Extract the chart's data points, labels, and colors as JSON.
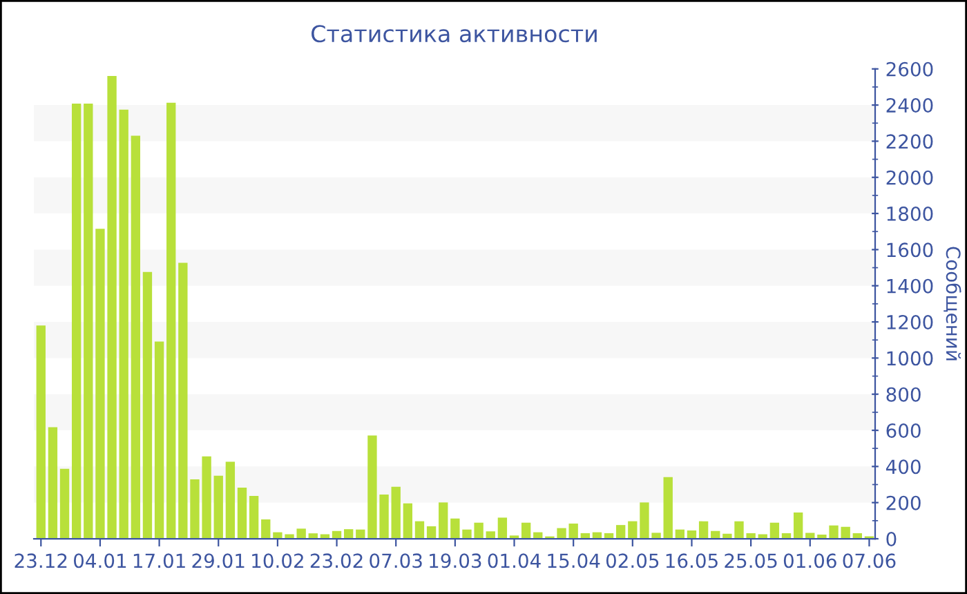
{
  "chart_data": {
    "type": "bar",
    "title": "Статистика активности",
    "ylabel": "Сообщений",
    "categories": [
      "23.12",
      null,
      null,
      null,
      null,
      "04.01",
      null,
      null,
      null,
      null,
      "17.01",
      null,
      null,
      null,
      null,
      "29.01",
      null,
      null,
      null,
      null,
      "10.02",
      null,
      null,
      null,
      null,
      "23.02",
      null,
      null,
      null,
      null,
      "07.03",
      null,
      null,
      null,
      null,
      "19.03",
      null,
      null,
      null,
      null,
      "01.04",
      null,
      null,
      null,
      null,
      "15.04",
      null,
      null,
      null,
      null,
      "02.05",
      null,
      null,
      null,
      null,
      "16.05",
      null,
      null,
      null,
      null,
      "25.05",
      null,
      null,
      null,
      null,
      "01.06",
      null,
      null,
      null,
      null,
      "07.06"
    ],
    "values": [
      1180,
      617,
      387,
      2408,
      2408,
      1715,
      2561,
      2375,
      2230,
      1476,
      1091,
      2413,
      1527,
      329,
      456,
      349,
      426,
      283,
      237,
      107,
      36,
      25,
      56,
      30,
      25,
      43,
      53,
      51,
      571,
      245,
      288,
      196,
      97,
      69,
      201,
      112,
      51,
      89,
      41,
      117,
      18,
      89,
      36,
      13,
      59,
      84,
      31,
      36,
      31,
      76,
      97,
      201,
      33,
      341,
      51,
      46,
      97,
      43,
      28,
      97,
      31,
      25,
      89,
      31,
      145,
      33,
      23,
      74,
      66,
      31,
      13
    ],
    "color": "#b8e03a",
    "ylim": [
      0,
      2600
    ],
    "yticks": [
      0,
      200,
      400,
      600,
      800,
      1000,
      1200,
      1400,
      1600,
      1800,
      2000,
      2200,
      2400,
      2600
    ],
    "bands": [
      {
        "axis": "y",
        "from": 200,
        "to": 400,
        "color": "#f7f7f7"
      },
      {
        "axis": "y",
        "from": 600,
        "to": 800,
        "color": "#f7f7f7"
      },
      {
        "axis": "y",
        "from": 1000,
        "to": 1200,
        "color": "#f7f7f7"
      },
      {
        "axis": "y",
        "from": 1400,
        "to": 1600,
        "color": "#f7f7f7"
      },
      {
        "axis": "y",
        "from": 1800,
        "to": 2000,
        "color": "#f7f7f7"
      },
      {
        "axis": "y",
        "from": 2200,
        "to": 2400,
        "color": "#f7f7f7"
      }
    ]
  }
}
